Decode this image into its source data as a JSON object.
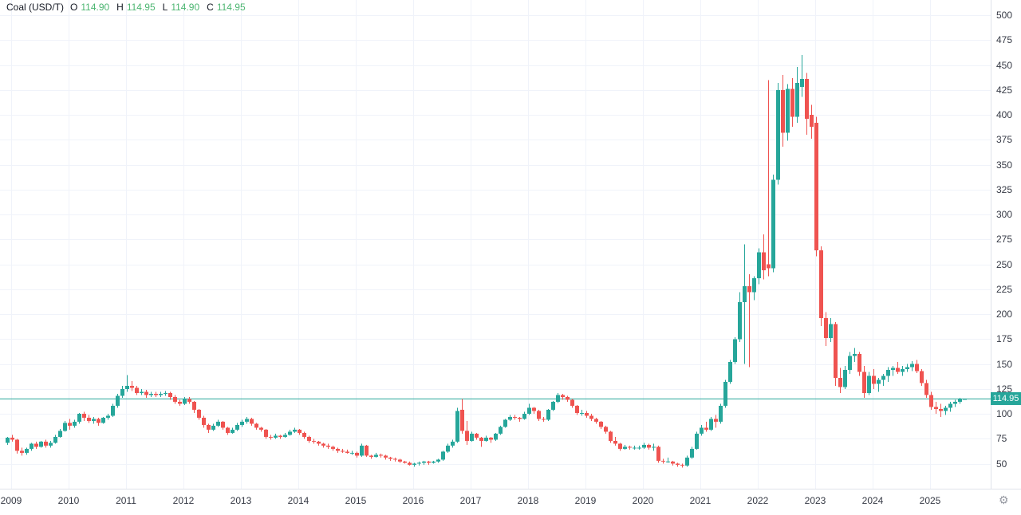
{
  "legend": {
    "symbol": "Coal (USD/T)",
    "o_label": "O",
    "o_value": "114.90",
    "h_label": "H",
    "h_value": "114.95",
    "l_label": "L",
    "l_value": "114.90",
    "c_label": "C",
    "c_value": "114.95"
  },
  "last_price": "114.95",
  "price_axis": {
    "ticks": [
      500,
      475,
      450,
      425,
      400,
      375,
      350,
      325,
      300,
      275,
      250,
      225,
      200,
      175,
      150,
      125,
      100,
      75,
      50
    ]
  },
  "time_axis": {
    "years": [
      "2009",
      "2010",
      "2011",
      "2012",
      "2013",
      "2014",
      "2015",
      "2016",
      "2017",
      "2018",
      "2019",
      "2020",
      "2021",
      "2022",
      "2023",
      "2024",
      "2025"
    ]
  },
  "colors": {
    "up": "#26a69a",
    "down": "#ef5350",
    "grid": "#f0f3fa",
    "axis_text": "#363a45",
    "legend_text": "#131722",
    "legend_value": "#4db672",
    "price_line": "#26a69a",
    "label_bg": "#26a69a",
    "label_text": "#ffffff",
    "border": "#e0e3eb",
    "gear": "#9598a1"
  },
  "chart_data": {
    "type": "candlestick",
    "title": "Coal (USD/T)",
    "interval": "1 month",
    "start_month": "2008-12",
    "end_month": "2025-08",
    "ylim": [
      38,
      505
    ],
    "y_tick_step": 25,
    "grid": true,
    "last_close": 114.95,
    "ohlc_fields": [
      "open",
      "high",
      "low",
      "close"
    ],
    "ohlc": [
      [
        71,
        77,
        69,
        76
      ],
      [
        76,
        79,
        72,
        74
      ],
      [
        74,
        75,
        60,
        63
      ],
      [
        63,
        66,
        58,
        61
      ],
      [
        61,
        66,
        59,
        65
      ],
      [
        65,
        71,
        63,
        70
      ],
      [
        70,
        72,
        65,
        67
      ],
      [
        67,
        73,
        66,
        72
      ],
      [
        72,
        74,
        66,
        68
      ],
      [
        68,
        73,
        66,
        71
      ],
      [
        71,
        79,
        70,
        77
      ],
      [
        77,
        85,
        76,
        83
      ],
      [
        83,
        93,
        82,
        91
      ],
      [
        91,
        95,
        84,
        88
      ],
      [
        88,
        94,
        86,
        92
      ],
      [
        92,
        101,
        90,
        100
      ],
      [
        100,
        102,
        93,
        96
      ],
      [
        96,
        99,
        91,
        93
      ],
      [
        93,
        97,
        90,
        95
      ],
      [
        95,
        96,
        88,
        91
      ],
      [
        91,
        97,
        90,
        96
      ],
      [
        96,
        100,
        94,
        98
      ],
      [
        98,
        110,
        97,
        108
      ],
      [
        108,
        120,
        106,
        118
      ],
      [
        118,
        128,
        116,
        125
      ],
      [
        125,
        139,
        122,
        128
      ],
      [
        128,
        133,
        123,
        126
      ],
      [
        126,
        128,
        119,
        121
      ],
      [
        121,
        125,
        119,
        122
      ],
      [
        122,
        124,
        116,
        119
      ],
      [
        119,
        122,
        117,
        120
      ],
      [
        120,
        122,
        117,
        119
      ],
      [
        119,
        122,
        117,
        120
      ],
      [
        120,
        123,
        118,
        121
      ],
      [
        121,
        122,
        114,
        117
      ],
      [
        117,
        119,
        110,
        112
      ],
      [
        112,
        114,
        108,
        110
      ],
      [
        110,
        117,
        109,
        115
      ],
      [
        115,
        117,
        110,
        112
      ],
      [
        112,
        113,
        101,
        104
      ],
      [
        104,
        105,
        94,
        96
      ],
      [
        96,
        98,
        86,
        89
      ],
      [
        89,
        90,
        81,
        84
      ],
      [
        84,
        90,
        83,
        88
      ],
      [
        88,
        94,
        87,
        92
      ],
      [
        92,
        93,
        84,
        86
      ],
      [
        86,
        87,
        79,
        81
      ],
      [
        81,
        86,
        80,
        84
      ],
      [
        84,
        91,
        83,
        89
      ],
      [
        89,
        94,
        87,
        92
      ],
      [
        92,
        97,
        90,
        95
      ],
      [
        95,
        96,
        88,
        90
      ],
      [
        90,
        91,
        84,
        86
      ],
      [
        86,
        87,
        82,
        84
      ],
      [
        84,
        85,
        75,
        77
      ],
      [
        77,
        79,
        74,
        76
      ],
      [
        76,
        80,
        75,
        78
      ],
      [
        78,
        79,
        75,
        77
      ],
      [
        77,
        81,
        76,
        79
      ],
      [
        79,
        84,
        78,
        82
      ],
      [
        82,
        86,
        81,
        84
      ],
      [
        84,
        85,
        79,
        81
      ],
      [
        81,
        82,
        75,
        77
      ],
      [
        77,
        78,
        71,
        73
      ],
      [
        73,
        75,
        70,
        72
      ],
      [
        72,
        73,
        68,
        70
      ],
      [
        70,
        71,
        66,
        68
      ],
      [
        68,
        70,
        65,
        67
      ],
      [
        67,
        68,
        63,
        65
      ],
      [
        65,
        66,
        61,
        63
      ],
      [
        63,
        65,
        61,
        62
      ],
      [
        62,
        64,
        60,
        61
      ],
      [
        61,
        63,
        59,
        61
      ],
      [
        61,
        62,
        56,
        58
      ],
      [
        58,
        70,
        57,
        68
      ],
      [
        68,
        69,
        57,
        58
      ],
      [
        58,
        59,
        55,
        57
      ],
      [
        57,
        61,
        56,
        59
      ],
      [
        59,
        60,
        56,
        58
      ],
      [
        58,
        59,
        54,
        56
      ],
      [
        56,
        57,
        53,
        55
      ],
      [
        55,
        56,
        52,
        54
      ],
      [
        54,
        55,
        51,
        52
      ],
      [
        52,
        53,
        50,
        51
      ],
      [
        51,
        52,
        48,
        49
      ],
      [
        49,
        51,
        47,
        50
      ],
      [
        50,
        52,
        48,
        51
      ],
      [
        51,
        53,
        49,
        52
      ],
      [
        52,
        53,
        49,
        51
      ],
      [
        51,
        53,
        50,
        52
      ],
      [
        52,
        55,
        51,
        54
      ],
      [
        54,
        63,
        53,
        62
      ],
      [
        62,
        70,
        61,
        68
      ],
      [
        68,
        74,
        66,
        72
      ],
      [
        72,
        106,
        71,
        103
      ],
      [
        104,
        115,
        80,
        83
      ],
      [
        83,
        93,
        69,
        73
      ],
      [
        73,
        82,
        72,
        80
      ],
      [
        80,
        81,
        74,
        76
      ],
      [
        76,
        77,
        67,
        73
      ],
      [
        73,
        78,
        72,
        76
      ],
      [
        76,
        77,
        71,
        74
      ],
      [
        74,
        81,
        73,
        80
      ],
      [
        80,
        88,
        79,
        87
      ],
      [
        87,
        95,
        86,
        94
      ],
      [
        94,
        99,
        93,
        97
      ],
      [
        97,
        99,
        94,
        96
      ],
      [
        96,
        97,
        92,
        95
      ],
      [
        95,
        102,
        94,
        100
      ],
      [
        100,
        110,
        99,
        106
      ],
      [
        106,
        107,
        100,
        103
      ],
      [
        103,
        104,
        93,
        95
      ],
      [
        95,
        97,
        92,
        94
      ],
      [
        94,
        105,
        93,
        104
      ],
      [
        104,
        113,
        103,
        112
      ],
      [
        112,
        121,
        111,
        119
      ],
      [
        119,
        120,
        114,
        117
      ],
      [
        117,
        118,
        112,
        114
      ],
      [
        114,
        115,
        106,
        108
      ],
      [
        108,
        109,
        99,
        101
      ],
      [
        101,
        104,
        98,
        101
      ],
      [
        101,
        103,
        96,
        98
      ],
      [
        98,
        100,
        93,
        95
      ],
      [
        95,
        96,
        90,
        92
      ],
      [
        92,
        93,
        85,
        87
      ],
      [
        87,
        88,
        80,
        82
      ],
      [
        82,
        83,
        71,
        73
      ],
      [
        73,
        77,
        68,
        70
      ],
      [
        70,
        71,
        63,
        65
      ],
      [
        65,
        69,
        64,
        67
      ],
      [
        67,
        68,
        64,
        66
      ],
      [
        66,
        68,
        64,
        66
      ],
      [
        66,
        68,
        64,
        66
      ],
      [
        66,
        71,
        65,
        69
      ],
      [
        69,
        70,
        64,
        66
      ],
      [
        66,
        70,
        63,
        67
      ],
      [
        67,
        68,
        51,
        53
      ],
      [
        53,
        55,
        50,
        52
      ],
      [
        52,
        56,
        51,
        52
      ],
      [
        52,
        53,
        48,
        50
      ],
      [
        50,
        51,
        47,
        49
      ],
      [
        49,
        50,
        46,
        48
      ],
      [
        48,
        58,
        47,
        56
      ],
      [
        56,
        67,
        55,
        65
      ],
      [
        65,
        82,
        64,
        80
      ],
      [
        80,
        89,
        78,
        86
      ],
      [
        86,
        92,
        82,
        84
      ],
      [
        84,
        97,
        83,
        95
      ],
      [
        95,
        99,
        86,
        92
      ],
      [
        92,
        110,
        90,
        108
      ],
      [
        108,
        134,
        106,
        132
      ],
      [
        132,
        154,
        130,
        152
      ],
      [
        152,
        177,
        150,
        175
      ],
      [
        175,
        222,
        172,
        212
      ],
      [
        212,
        270,
        150,
        228
      ],
      [
        228,
        240,
        147,
        222
      ],
      [
        222,
        238,
        214,
        236
      ],
      [
        236,
        266,
        230,
        262
      ],
      [
        262,
        280,
        235,
        244
      ],
      [
        250,
        435,
        238,
        246
      ],
      [
        246,
        340,
        242,
        335
      ],
      [
        335,
        432,
        330,
        425
      ],
      [
        425,
        440,
        368,
        382
      ],
      [
        382,
        431,
        374,
        426
      ],
      [
        426,
        437,
        388,
        398
      ],
      [
        398,
        448,
        392,
        432
      ],
      [
        428,
        460,
        418,
        436
      ],
      [
        436,
        442,
        380,
        396
      ],
      [
        400,
        410,
        376,
        388
      ],
      [
        392,
        398,
        258,
        264
      ],
      [
        264,
        268,
        188,
        196
      ],
      [
        196,
        202,
        168,
        176
      ],
      [
        176,
        196,
        172,
        190
      ],
      [
        190,
        192,
        128,
        136
      ],
      [
        136,
        146,
        121,
        127
      ],
      [
        127,
        148,
        125,
        144
      ],
      [
        144,
        162,
        140,
        158
      ],
      [
        158,
        166,
        152,
        160
      ],
      [
        160,
        162,
        138,
        142
      ],
      [
        142,
        148,
        116,
        121
      ],
      [
        121,
        142,
        119,
        138
      ],
      [
        138,
        145,
        125,
        130
      ],
      [
        130,
        136,
        122,
        134
      ],
      [
        134,
        140,
        128,
        138
      ],
      [
        138,
        147,
        132,
        144
      ],
      [
        144,
        148,
        138,
        146
      ],
      [
        146,
        152,
        140,
        142
      ],
      [
        142,
        148,
        138,
        145
      ],
      [
        145,
        150,
        142,
        147
      ],
      [
        147,
        153,
        143,
        150
      ],
      [
        150,
        154,
        141,
        143
      ],
      [
        143,
        145,
        128,
        131
      ],
      [
        131,
        134,
        116,
        119
      ],
      [
        119,
        122,
        104,
        107
      ],
      [
        107,
        112,
        100,
        105
      ],
      [
        105,
        110,
        97,
        103
      ],
      [
        103,
        108,
        99,
        106
      ],
      [
        106,
        112,
        102,
        110
      ],
      [
        110,
        114,
        107,
        112
      ],
      [
        112,
        116,
        110,
        115
      ],
      [
        114.9,
        114.95,
        114.9,
        114.95
      ]
    ]
  }
}
